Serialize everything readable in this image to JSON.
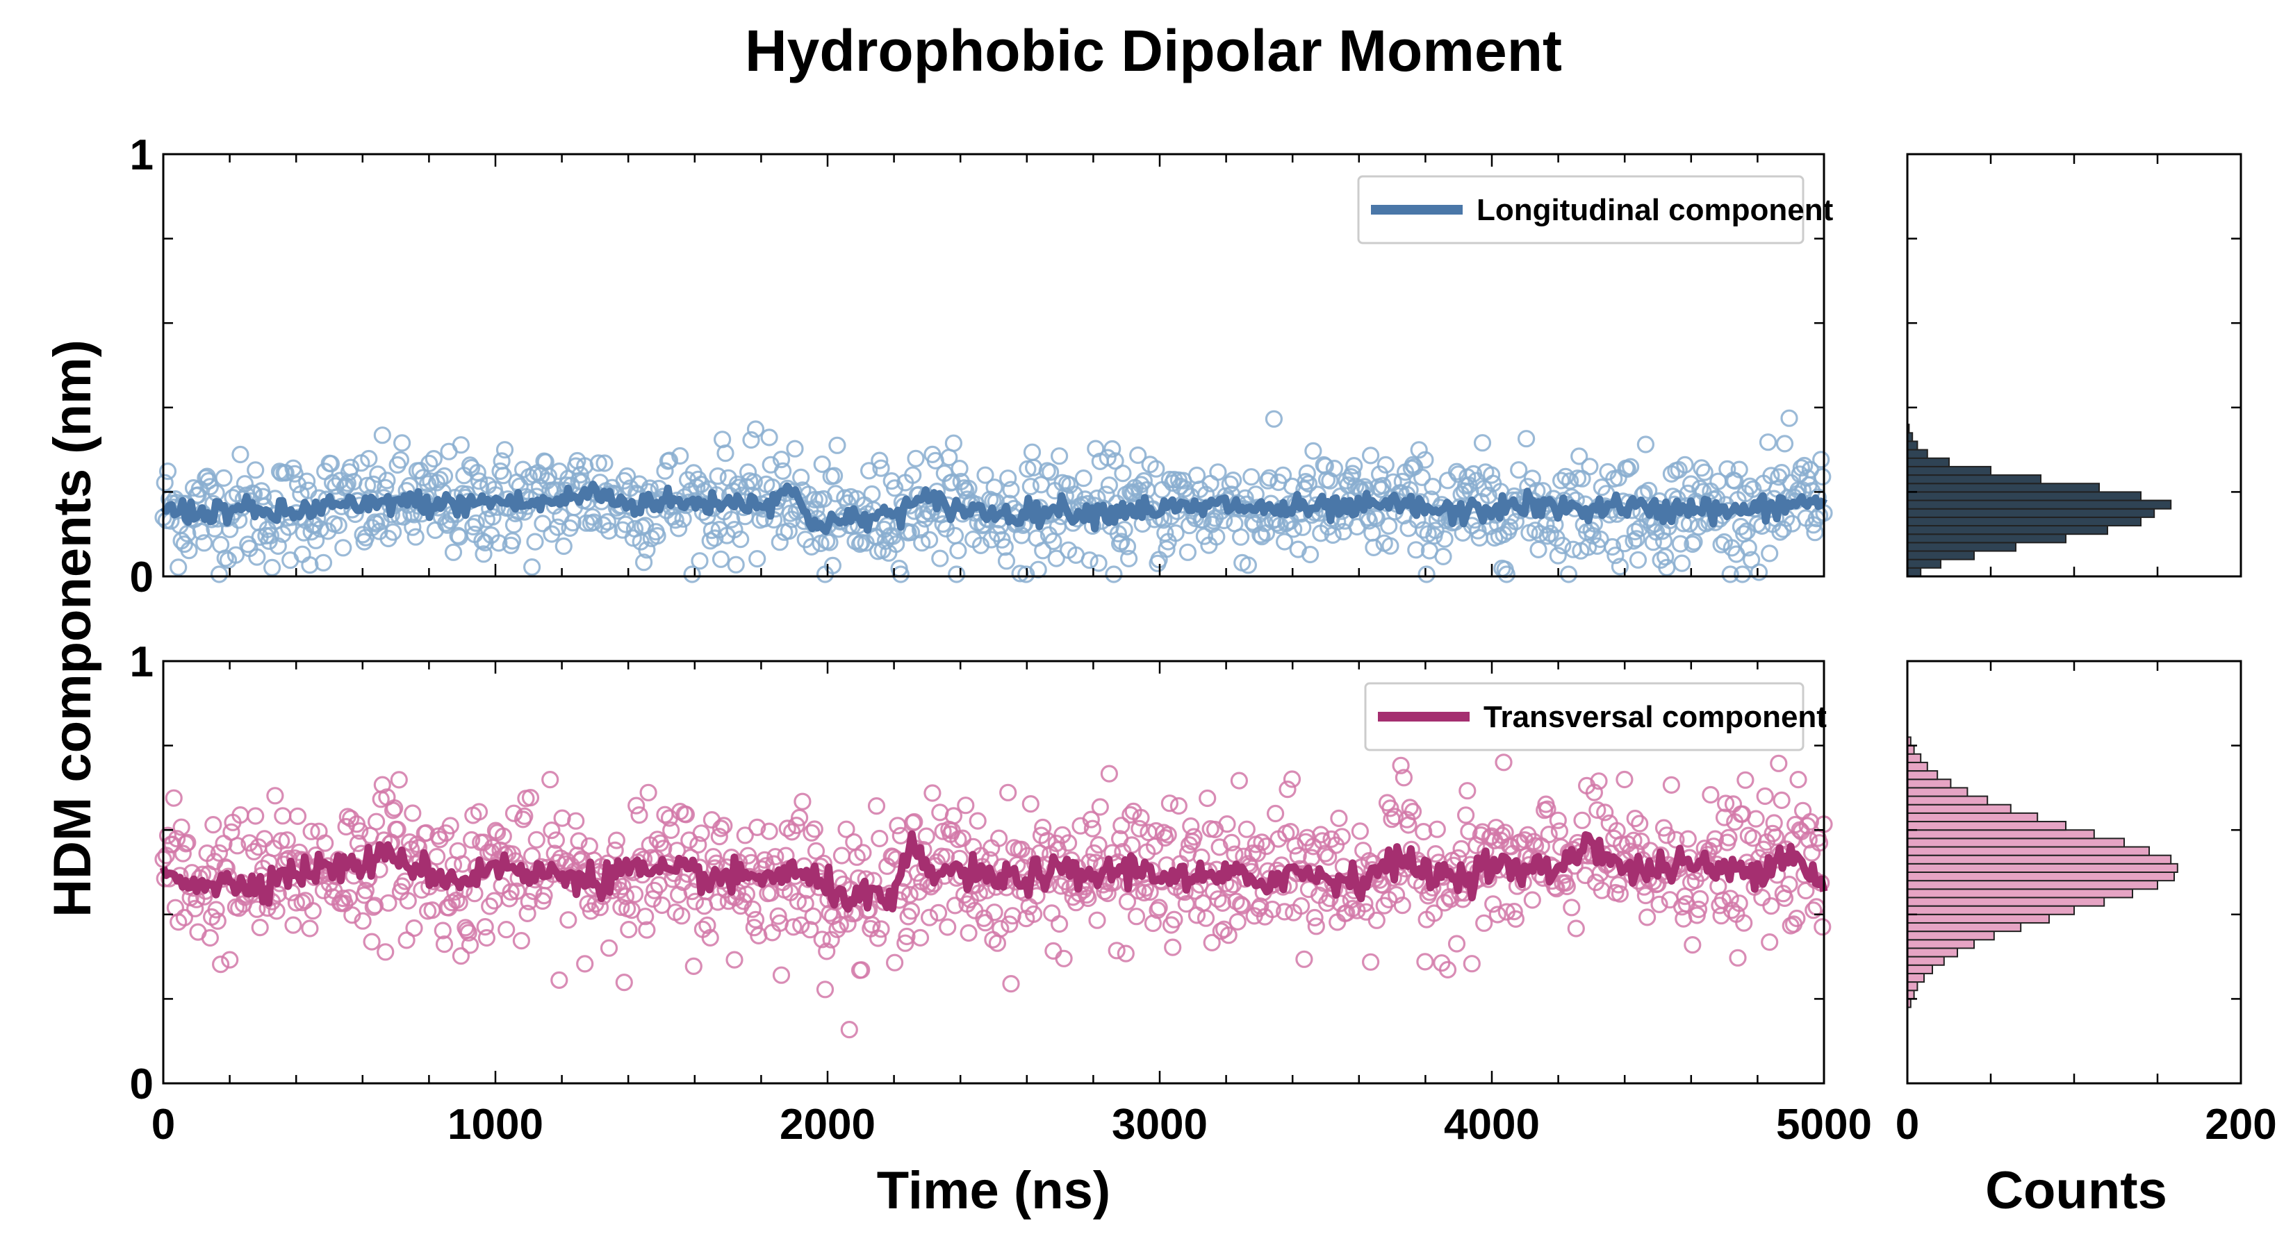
{
  "chart_data": {
    "type": "scatter",
    "title": "Hydrophobic Dipolar Moment",
    "ylabel": "HDM components (nm)",
    "xlabel": "Time (ns)",
    "hist_xlabel": "Counts",
    "xlim": [
      0,
      5000
    ],
    "ylim": [
      0,
      1
    ],
    "hist_xlim": [
      0,
      200
    ],
    "x_ticks": [
      "0",
      "1000",
      "2000",
      "3000",
      "4000",
      "5000"
    ],
    "y_ticks": [
      "0",
      "1"
    ],
    "hist_ticks": [
      "0",
      "200"
    ],
    "grid": false,
    "legend_position": "top-right",
    "panels": [
      {
        "name": "Longitudinal component",
        "color": "#4a77a8",
        "marker_color": "#8aaed0",
        "hist_color": "#2f4354",
        "mean_level": 0.17,
        "scatter_spread": 0.065,
        "smooth_line": [
          [
            0,
            0.16
          ],
          [
            100,
            0.15
          ],
          [
            200,
            0.16
          ],
          [
            300,
            0.15
          ],
          [
            400,
            0.15
          ],
          [
            500,
            0.17
          ],
          [
            600,
            0.16
          ],
          [
            700,
            0.18
          ],
          [
            800,
            0.17
          ],
          [
            900,
            0.17
          ],
          [
            1000,
            0.18
          ],
          [
            1100,
            0.17
          ],
          [
            1200,
            0.18
          ],
          [
            1300,
            0.2
          ],
          [
            1400,
            0.17
          ],
          [
            1500,
            0.18
          ],
          [
            1600,
            0.17
          ],
          [
            1700,
            0.18
          ],
          [
            1800,
            0.17
          ],
          [
            1880,
            0.21
          ],
          [
            1950,
            0.13
          ],
          [
            2050,
            0.13
          ],
          [
            2150,
            0.14
          ],
          [
            2300,
            0.18
          ],
          [
            2400,
            0.16
          ],
          [
            2500,
            0.15
          ],
          [
            2600,
            0.15
          ],
          [
            2700,
            0.16
          ],
          [
            2800,
            0.15
          ],
          [
            2900,
            0.16
          ],
          [
            3000,
            0.16
          ],
          [
            3100,
            0.16
          ],
          [
            3200,
            0.17
          ],
          [
            3300,
            0.16
          ],
          [
            3400,
            0.16
          ],
          [
            3500,
            0.16
          ],
          [
            3600,
            0.16
          ],
          [
            3700,
            0.17
          ],
          [
            3800,
            0.16
          ],
          [
            3900,
            0.15
          ],
          [
            4000,
            0.16
          ],
          [
            4100,
            0.17
          ],
          [
            4200,
            0.16
          ],
          [
            4300,
            0.16
          ],
          [
            4400,
            0.17
          ],
          [
            4500,
            0.15
          ],
          [
            4600,
            0.17
          ],
          [
            4700,
            0.15
          ],
          [
            4800,
            0.16
          ],
          [
            4900,
            0.17
          ],
          [
            5000,
            0.18
          ]
        ],
        "histogram": {
          "bins": [
            0.0,
            0.02,
            0.04,
            0.06,
            0.08,
            0.1,
            0.12,
            0.14,
            0.16,
            0.18,
            0.2,
            0.22,
            0.24,
            0.26,
            0.28,
            0.3,
            0.32,
            0.34
          ],
          "counts": [
            8,
            20,
            40,
            65,
            95,
            120,
            140,
            148,
            158,
            140,
            115,
            80,
            50,
            25,
            12,
            6,
            3,
            1
          ]
        }
      },
      {
        "name": "Transversal component",
        "color": "#a52f70",
        "marker_color": "#d278a8",
        "hist_color": "#e6a4c4",
        "mean_level": 0.49,
        "scatter_spread": 0.085,
        "smooth_line": [
          [
            0,
            0.5
          ],
          [
            100,
            0.48
          ],
          [
            200,
            0.47
          ],
          [
            300,
            0.48
          ],
          [
            400,
            0.5
          ],
          [
            500,
            0.51
          ],
          [
            600,
            0.52
          ],
          [
            700,
            0.54
          ],
          [
            800,
            0.5
          ],
          [
            900,
            0.48
          ],
          [
            1000,
            0.52
          ],
          [
            1100,
            0.49
          ],
          [
            1200,
            0.5
          ],
          [
            1300,
            0.48
          ],
          [
            1400,
            0.51
          ],
          [
            1500,
            0.49
          ],
          [
            1600,
            0.5
          ],
          [
            1700,
            0.48
          ],
          [
            1800,
            0.49
          ],
          [
            1900,
            0.5
          ],
          [
            2000,
            0.46
          ],
          [
            2100,
            0.44
          ],
          [
            2200,
            0.43
          ],
          [
            2250,
            0.56
          ],
          [
            2300,
            0.5
          ],
          [
            2400,
            0.5
          ],
          [
            2500,
            0.48
          ],
          [
            2600,
            0.49
          ],
          [
            2700,
            0.5
          ],
          [
            2800,
            0.49
          ],
          [
            2900,
            0.51
          ],
          [
            3000,
            0.5
          ],
          [
            3100,
            0.48
          ],
          [
            3200,
            0.49
          ],
          [
            3300,
            0.48
          ],
          [
            3400,
            0.5
          ],
          [
            3500,
            0.49
          ],
          [
            3600,
            0.48
          ],
          [
            3700,
            0.53
          ],
          [
            3800,
            0.5
          ],
          [
            3900,
            0.49
          ],
          [
            4000,
            0.52
          ],
          [
            4100,
            0.5
          ],
          [
            4200,
            0.51
          ],
          [
            4300,
            0.58
          ],
          [
            4400,
            0.5
          ],
          [
            4500,
            0.51
          ],
          [
            4600,
            0.52
          ],
          [
            4700,
            0.5
          ],
          [
            4800,
            0.51
          ],
          [
            4900,
            0.55
          ],
          [
            5000,
            0.47
          ]
        ],
        "histogram": {
          "bins": [
            0.18,
            0.2,
            0.22,
            0.24,
            0.26,
            0.28,
            0.3,
            0.32,
            0.34,
            0.36,
            0.38,
            0.4,
            0.42,
            0.44,
            0.46,
            0.48,
            0.5,
            0.52,
            0.54,
            0.56,
            0.58,
            0.6,
            0.62,
            0.64,
            0.66,
            0.68,
            0.7,
            0.72,
            0.74,
            0.76,
            0.78,
            0.8
          ],
          "counts": [
            2,
            4,
            6,
            10,
            15,
            22,
            30,
            40,
            52,
            68,
            85,
            100,
            118,
            135,
            150,
            160,
            162,
            158,
            145,
            130,
            112,
            95,
            78,
            62,
            48,
            36,
            26,
            18,
            12,
            8,
            4,
            2
          ]
        }
      }
    ]
  }
}
